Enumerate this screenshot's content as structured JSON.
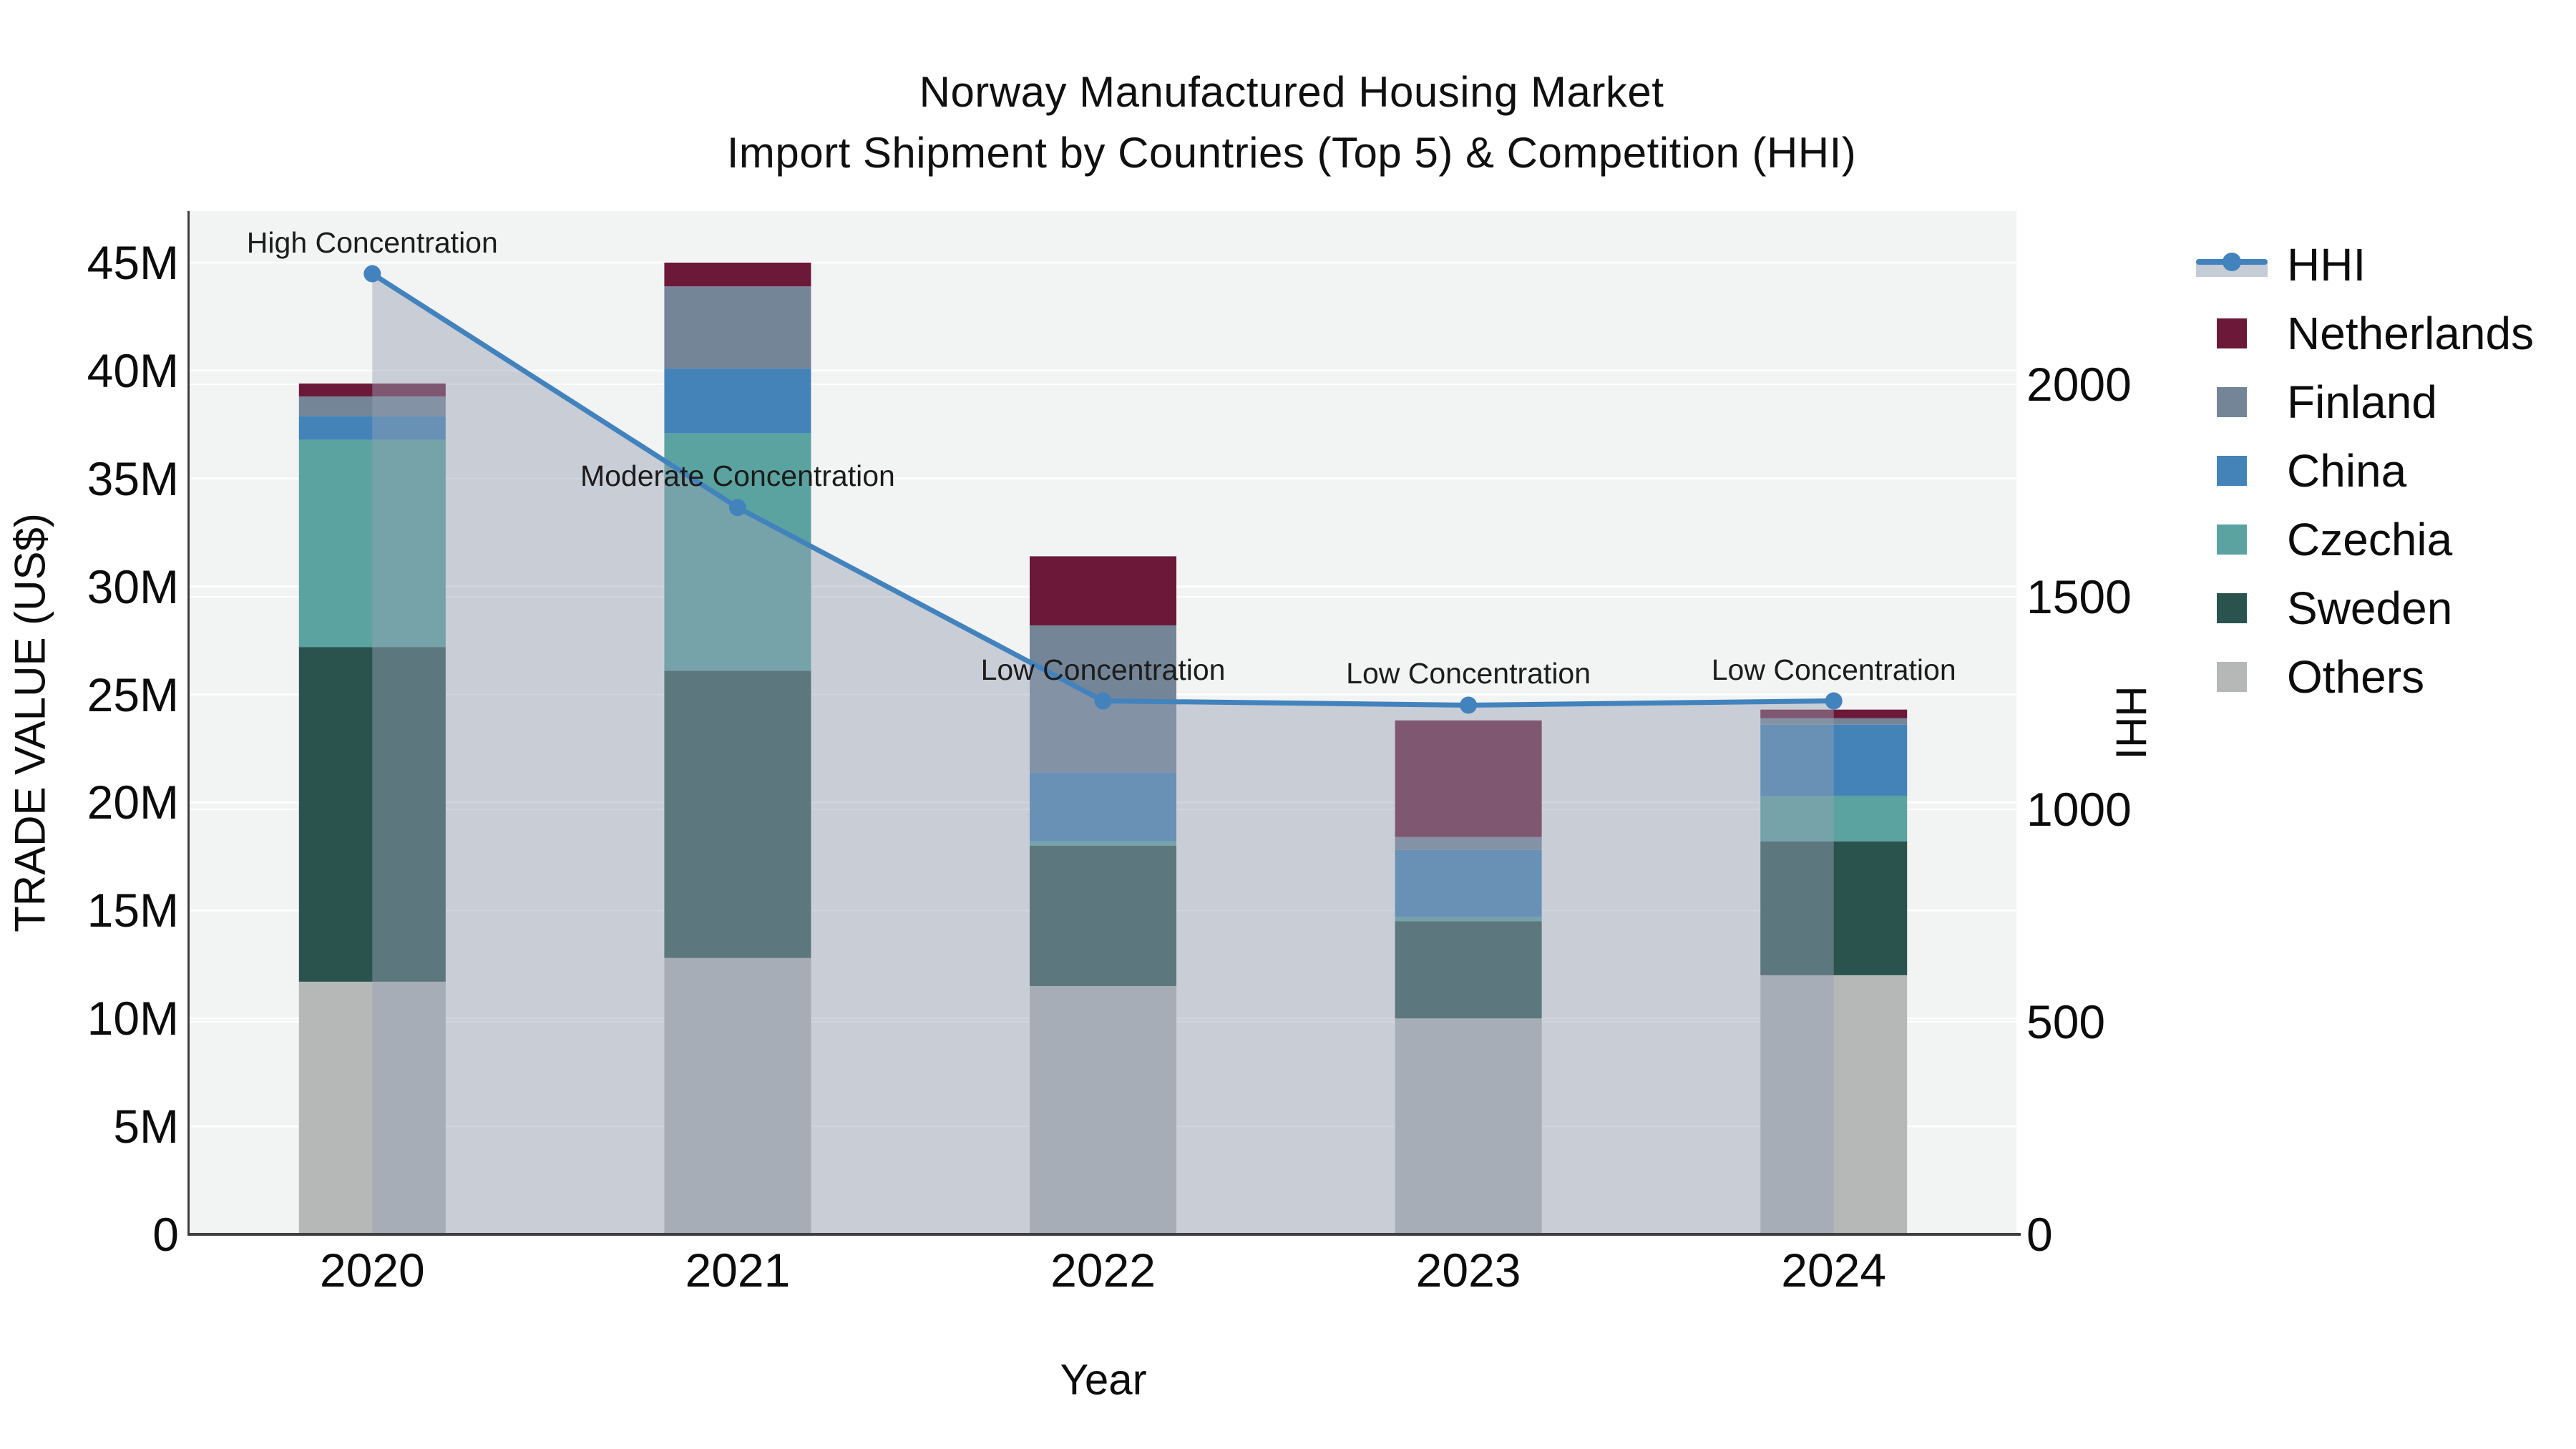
{
  "title": {
    "line1": "Norway Manufactured Housing Market",
    "line2": "Import Shipment by Countries (Top 5) & Competition (HHI)"
  },
  "axes": {
    "x": {
      "label": "Year",
      "categories": [
        "2020",
        "2021",
        "2022",
        "2023",
        "2024"
      ]
    },
    "y_left": {
      "label": "TRADE VALUE (US$)",
      "ticks": [
        "0",
        "5M",
        "10M",
        "15M",
        "20M",
        "25M",
        "30M",
        "35M",
        "40M",
        "45M"
      ],
      "tick_values": [
        0,
        5,
        10,
        15,
        20,
        25,
        30,
        35,
        40,
        45
      ]
    },
    "y_right": {
      "label": "HHI",
      "ticks": [
        "0",
        "500",
        "1000",
        "1500",
        "2000"
      ],
      "tick_values": [
        0,
        500,
        1000,
        1500,
        2000
      ]
    }
  },
  "legend": {
    "items": [
      {
        "label": "HHI",
        "kind": "line"
      },
      {
        "label": "Netherlands",
        "kind": "swatch",
        "color": "#6b1839"
      },
      {
        "label": "Finland",
        "kind": "swatch",
        "color": "#758598"
      },
      {
        "label": "China",
        "kind": "swatch",
        "color": "#4383b8"
      },
      {
        "label": "Czechia",
        "kind": "swatch",
        "color": "#5ba3a0"
      },
      {
        "label": "Sweden",
        "kind": "swatch",
        "color": "#2b534e"
      },
      {
        "label": "Others",
        "kind": "swatch",
        "color": "#b6b8b7"
      }
    ]
  },
  "chart_data": {
    "type": "bar+line",
    "title": "Norway Manufactured Housing Market — Import Shipment by Countries (Top 5) & Competition (HHI)",
    "categories": [
      "2020",
      "2021",
      "2022",
      "2023",
      "2024"
    ],
    "bar_units": "million US$",
    "stack_order_bottom_to_top": [
      "Others",
      "Sweden",
      "Czechia",
      "China",
      "Finland",
      "Netherlands"
    ],
    "series": [
      {
        "name": "Others",
        "color": "#b6b8b7",
        "values": [
          11.7,
          12.8,
          11.5,
          10.0,
          12.0
        ]
      },
      {
        "name": "Sweden",
        "color": "#2b534e",
        "values": [
          15.5,
          13.3,
          6.5,
          4.5,
          6.2
        ]
      },
      {
        "name": "Czechia",
        "color": "#5ba3a0",
        "values": [
          9.6,
          11.0,
          0.2,
          0.2,
          2.1
        ]
      },
      {
        "name": "China",
        "color": "#4383b8",
        "values": [
          1.1,
          3.0,
          3.2,
          3.1,
          3.3
        ]
      },
      {
        "name": "Finland",
        "color": "#758598",
        "values": [
          0.9,
          3.8,
          6.8,
          0.6,
          0.3
        ]
      },
      {
        "name": "Netherlands",
        "color": "#6b1839",
        "values": [
          0.6,
          1.1,
          3.2,
          5.4,
          0.4
        ]
      }
    ],
    "bar_totals": [
      39.4,
      45.0,
      31.4,
      23.8,
      24.3
    ],
    "line_series": {
      "name": "HHI",
      "color": "#4283bd",
      "values": [
        2260,
        1710,
        1255,
        1245,
        1255
      ],
      "area_fill": true
    },
    "annotations": [
      {
        "category": "2020",
        "text": "High Concentration"
      },
      {
        "category": "2021",
        "text": "Moderate Concentration"
      },
      {
        "category": "2022",
        "text": "Low Concentration"
      },
      {
        "category": "2023",
        "text": "Low Concentration"
      },
      {
        "category": "2024",
        "text": "Low Concentration"
      }
    ],
    "xlabel": "Year",
    "ylabel_left": "TRADE VALUE (US$)",
    "ylabel_right": "HHI",
    "ylim_left": [
      0,
      47.4
    ],
    "ylim_right": [
      0,
      2400
    ],
    "grid": true,
    "legend_position": "right"
  },
  "colors": {
    "hhi_line": "#4283bd",
    "area_fill": "rgba(150,162,180,0.46)",
    "plot_bg": "#f2f3f3",
    "grid": "#ffffff",
    "axis_line": "#3f3f3f",
    "text": "#0c0c0c"
  }
}
